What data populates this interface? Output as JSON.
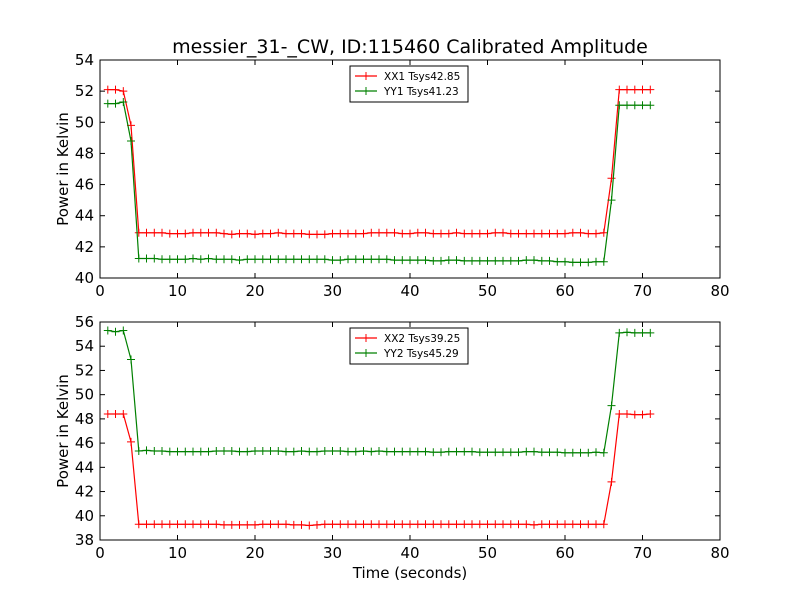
{
  "title": "messier_31-_CW, ID:115460 Calibrated Amplitude",
  "colors": {
    "red": "#ff0000",
    "green": "#008000"
  },
  "chart_data": [
    {
      "type": "line",
      "title": "messier_31-_CW, ID:115460 Calibrated Amplitude",
      "xlabel": "",
      "ylabel": "Power in Kelvin",
      "xlim": [
        0,
        80
      ],
      "ylim": [
        40,
        54
      ],
      "xticks": [
        0,
        10,
        20,
        30,
        40,
        50,
        60,
        70,
        80
      ],
      "yticks": [
        40,
        42,
        44,
        46,
        48,
        50,
        52,
        54
      ],
      "grid": false,
      "legend": "top-center",
      "x": [
        1,
        2,
        3,
        4,
        5,
        6,
        7,
        8,
        9,
        10,
        11,
        12,
        13,
        14,
        15,
        16,
        17,
        18,
        19,
        20,
        21,
        22,
        23,
        24,
        25,
        26,
        27,
        28,
        29,
        30,
        31,
        32,
        33,
        34,
        35,
        36,
        37,
        38,
        39,
        40,
        41,
        42,
        43,
        44,
        45,
        46,
        47,
        48,
        49,
        50,
        51,
        52,
        53,
        54,
        55,
        56,
        57,
        58,
        59,
        60,
        61,
        62,
        63,
        64,
        65,
        66,
        67,
        68,
        69,
        70,
        71
      ],
      "series": [
        {
          "name": "XX1 Tsys42.85",
          "color": "#ff0000",
          "values": [
            52.1,
            52.1,
            52.0,
            49.8,
            42.9,
            42.9,
            42.9,
            42.9,
            42.85,
            42.85,
            42.85,
            42.9,
            42.9,
            42.9,
            42.9,
            42.85,
            42.8,
            42.85,
            42.85,
            42.8,
            42.85,
            42.85,
            42.9,
            42.85,
            42.85,
            42.85,
            42.8,
            42.8,
            42.8,
            42.85,
            42.85,
            42.85,
            42.85,
            42.85,
            42.9,
            42.9,
            42.9,
            42.9,
            42.85,
            42.85,
            42.9,
            42.9,
            42.85,
            42.85,
            42.85,
            42.9,
            42.85,
            42.85,
            42.85,
            42.85,
            42.9,
            42.9,
            42.85,
            42.85,
            42.85,
            42.85,
            42.85,
            42.85,
            42.85,
            42.85,
            42.9,
            42.9,
            42.85,
            42.85,
            42.9,
            46.4,
            52.1,
            52.1,
            52.1,
            52.1,
            52.1
          ]
        },
        {
          "name": "YY1 Tsys41.23",
          "color": "#008000",
          "values": [
            51.2,
            51.2,
            51.3,
            48.8,
            41.25,
            41.25,
            41.25,
            41.2,
            41.2,
            41.2,
            41.2,
            41.25,
            41.2,
            41.25,
            41.2,
            41.2,
            41.2,
            41.15,
            41.2,
            41.2,
            41.2,
            41.2,
            41.2,
            41.2,
            41.2,
            41.2,
            41.2,
            41.2,
            41.2,
            41.15,
            41.15,
            41.2,
            41.2,
            41.2,
            41.2,
            41.2,
            41.2,
            41.15,
            41.15,
            41.15,
            41.15,
            41.15,
            41.1,
            41.1,
            41.15,
            41.15,
            41.1,
            41.1,
            41.1,
            41.1,
            41.1,
            41.1,
            41.1,
            41.1,
            41.15,
            41.15,
            41.1,
            41.1,
            41.05,
            41.05,
            41.0,
            41.0,
            41.0,
            41.05,
            41.05,
            45.0,
            51.1,
            51.1,
            51.1,
            51.1,
            51.1
          ]
        }
      ]
    },
    {
      "type": "line",
      "title": "",
      "xlabel": "Time (seconds)",
      "ylabel": "Power in Kelvin",
      "xlim": [
        0,
        80
      ],
      "ylim": [
        38,
        56
      ],
      "xticks": [
        0,
        10,
        20,
        30,
        40,
        50,
        60,
        70,
        80
      ],
      "yticks": [
        38,
        40,
        42,
        44,
        46,
        48,
        50,
        52,
        54,
        56
      ],
      "grid": false,
      "legend": "top-center",
      "x": [
        1,
        2,
        3,
        4,
        5,
        6,
        7,
        8,
        9,
        10,
        11,
        12,
        13,
        14,
        15,
        16,
        17,
        18,
        19,
        20,
        21,
        22,
        23,
        24,
        25,
        26,
        27,
        28,
        29,
        30,
        31,
        32,
        33,
        34,
        35,
        36,
        37,
        38,
        39,
        40,
        41,
        42,
        43,
        44,
        45,
        46,
        47,
        48,
        49,
        50,
        51,
        52,
        53,
        54,
        55,
        56,
        57,
        58,
        59,
        60,
        61,
        62,
        63,
        64,
        65,
        66,
        67,
        68,
        69,
        70,
        71
      ],
      "series": [
        {
          "name": "XX2 Tsys39.25",
          "color": "#ff0000",
          "values": [
            48.4,
            48.4,
            48.4,
            46.1,
            39.3,
            39.3,
            39.3,
            39.3,
            39.3,
            39.3,
            39.3,
            39.3,
            39.3,
            39.3,
            39.3,
            39.25,
            39.25,
            39.25,
            39.25,
            39.25,
            39.3,
            39.3,
            39.3,
            39.3,
            39.25,
            39.25,
            39.2,
            39.25,
            39.3,
            39.3,
            39.3,
            39.3,
            39.3,
            39.3,
            39.3,
            39.3,
            39.3,
            39.3,
            39.3,
            39.3,
            39.3,
            39.3,
            39.3,
            39.3,
            39.3,
            39.3,
            39.3,
            39.3,
            39.3,
            39.3,
            39.3,
            39.3,
            39.3,
            39.3,
            39.3,
            39.25,
            39.3,
            39.3,
            39.3,
            39.3,
            39.3,
            39.3,
            39.3,
            39.3,
            39.3,
            42.8,
            48.4,
            48.4,
            48.35,
            48.35,
            48.4
          ]
        },
        {
          "name": "YY2 Tsys45.29",
          "color": "#008000",
          "values": [
            55.3,
            55.2,
            55.3,
            52.9,
            45.35,
            45.4,
            45.35,
            45.35,
            45.3,
            45.3,
            45.3,
            45.3,
            45.3,
            45.3,
            45.35,
            45.35,
            45.35,
            45.3,
            45.3,
            45.35,
            45.35,
            45.35,
            45.35,
            45.3,
            45.3,
            45.35,
            45.3,
            45.3,
            45.35,
            45.35,
            45.35,
            45.3,
            45.3,
            45.35,
            45.3,
            45.35,
            45.3,
            45.3,
            45.3,
            45.3,
            45.3,
            45.3,
            45.25,
            45.25,
            45.3,
            45.3,
            45.3,
            45.3,
            45.25,
            45.25,
            45.25,
            45.25,
            45.25,
            45.25,
            45.3,
            45.3,
            45.25,
            45.25,
            45.25,
            45.2,
            45.2,
            45.2,
            45.2,
            45.25,
            45.2,
            49.1,
            55.1,
            55.15,
            55.1,
            55.1,
            55.1
          ]
        }
      ]
    }
  ]
}
